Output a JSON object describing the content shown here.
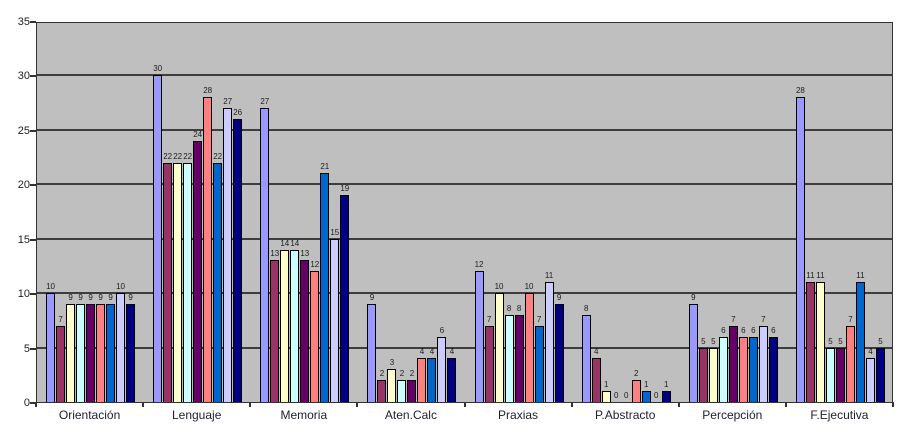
{
  "chart_data": {
    "type": "bar",
    "title": "",
    "xlabel": "",
    "ylabel": "",
    "categories": [
      "Orientación",
      "Lenguaje",
      "Memoria",
      "Aten.Calc",
      "Praxias",
      "P.Abstracto",
      "Percepción",
      "F.Ejecutiva"
    ],
    "series": [
      {
        "color": "#9999ff",
        "values": [
          10,
          30,
          27,
          9,
          12,
          8,
          9,
          28
        ]
      },
      {
        "color": "#993366",
        "values": [
          7,
          22,
          13,
          2,
          7,
          4,
          5,
          11
        ]
      },
      {
        "color": "#ffffcc",
        "values": [
          9,
          22,
          14,
          3,
          10,
          1,
          5,
          11
        ]
      },
      {
        "color": "#ccffff",
        "values": [
          9,
          22,
          14,
          2,
          8,
          0,
          6,
          5
        ]
      },
      {
        "color": "#660066",
        "values": [
          9,
          24,
          13,
          2,
          8,
          0,
          7,
          5
        ]
      },
      {
        "color": "#ff8080",
        "values": [
          9,
          28,
          12,
          4,
          10,
          2,
          6,
          7
        ]
      },
      {
        "color": "#0066cc",
        "values": [
          9,
          22,
          21,
          4,
          7,
          1,
          6,
          11
        ]
      },
      {
        "color": "#ccccff",
        "values": [
          10,
          27,
          15,
          6,
          11,
          0,
          7,
          4
        ]
      },
      {
        "color": "#000080",
        "values": [
          9,
          26,
          19,
          4,
          9,
          1,
          6,
          5
        ]
      }
    ],
    "ylim": [
      0,
      35
    ],
    "yticks": [
      0,
      5,
      10,
      15,
      20,
      25,
      30,
      35
    ],
    "gridline_step": 5,
    "grid": true,
    "legend_position": "none",
    "data_labels": true,
    "plot_background": "#bfbfbf",
    "gridline_color": "#3d3d3d",
    "bar_border_color": "#000000"
  }
}
